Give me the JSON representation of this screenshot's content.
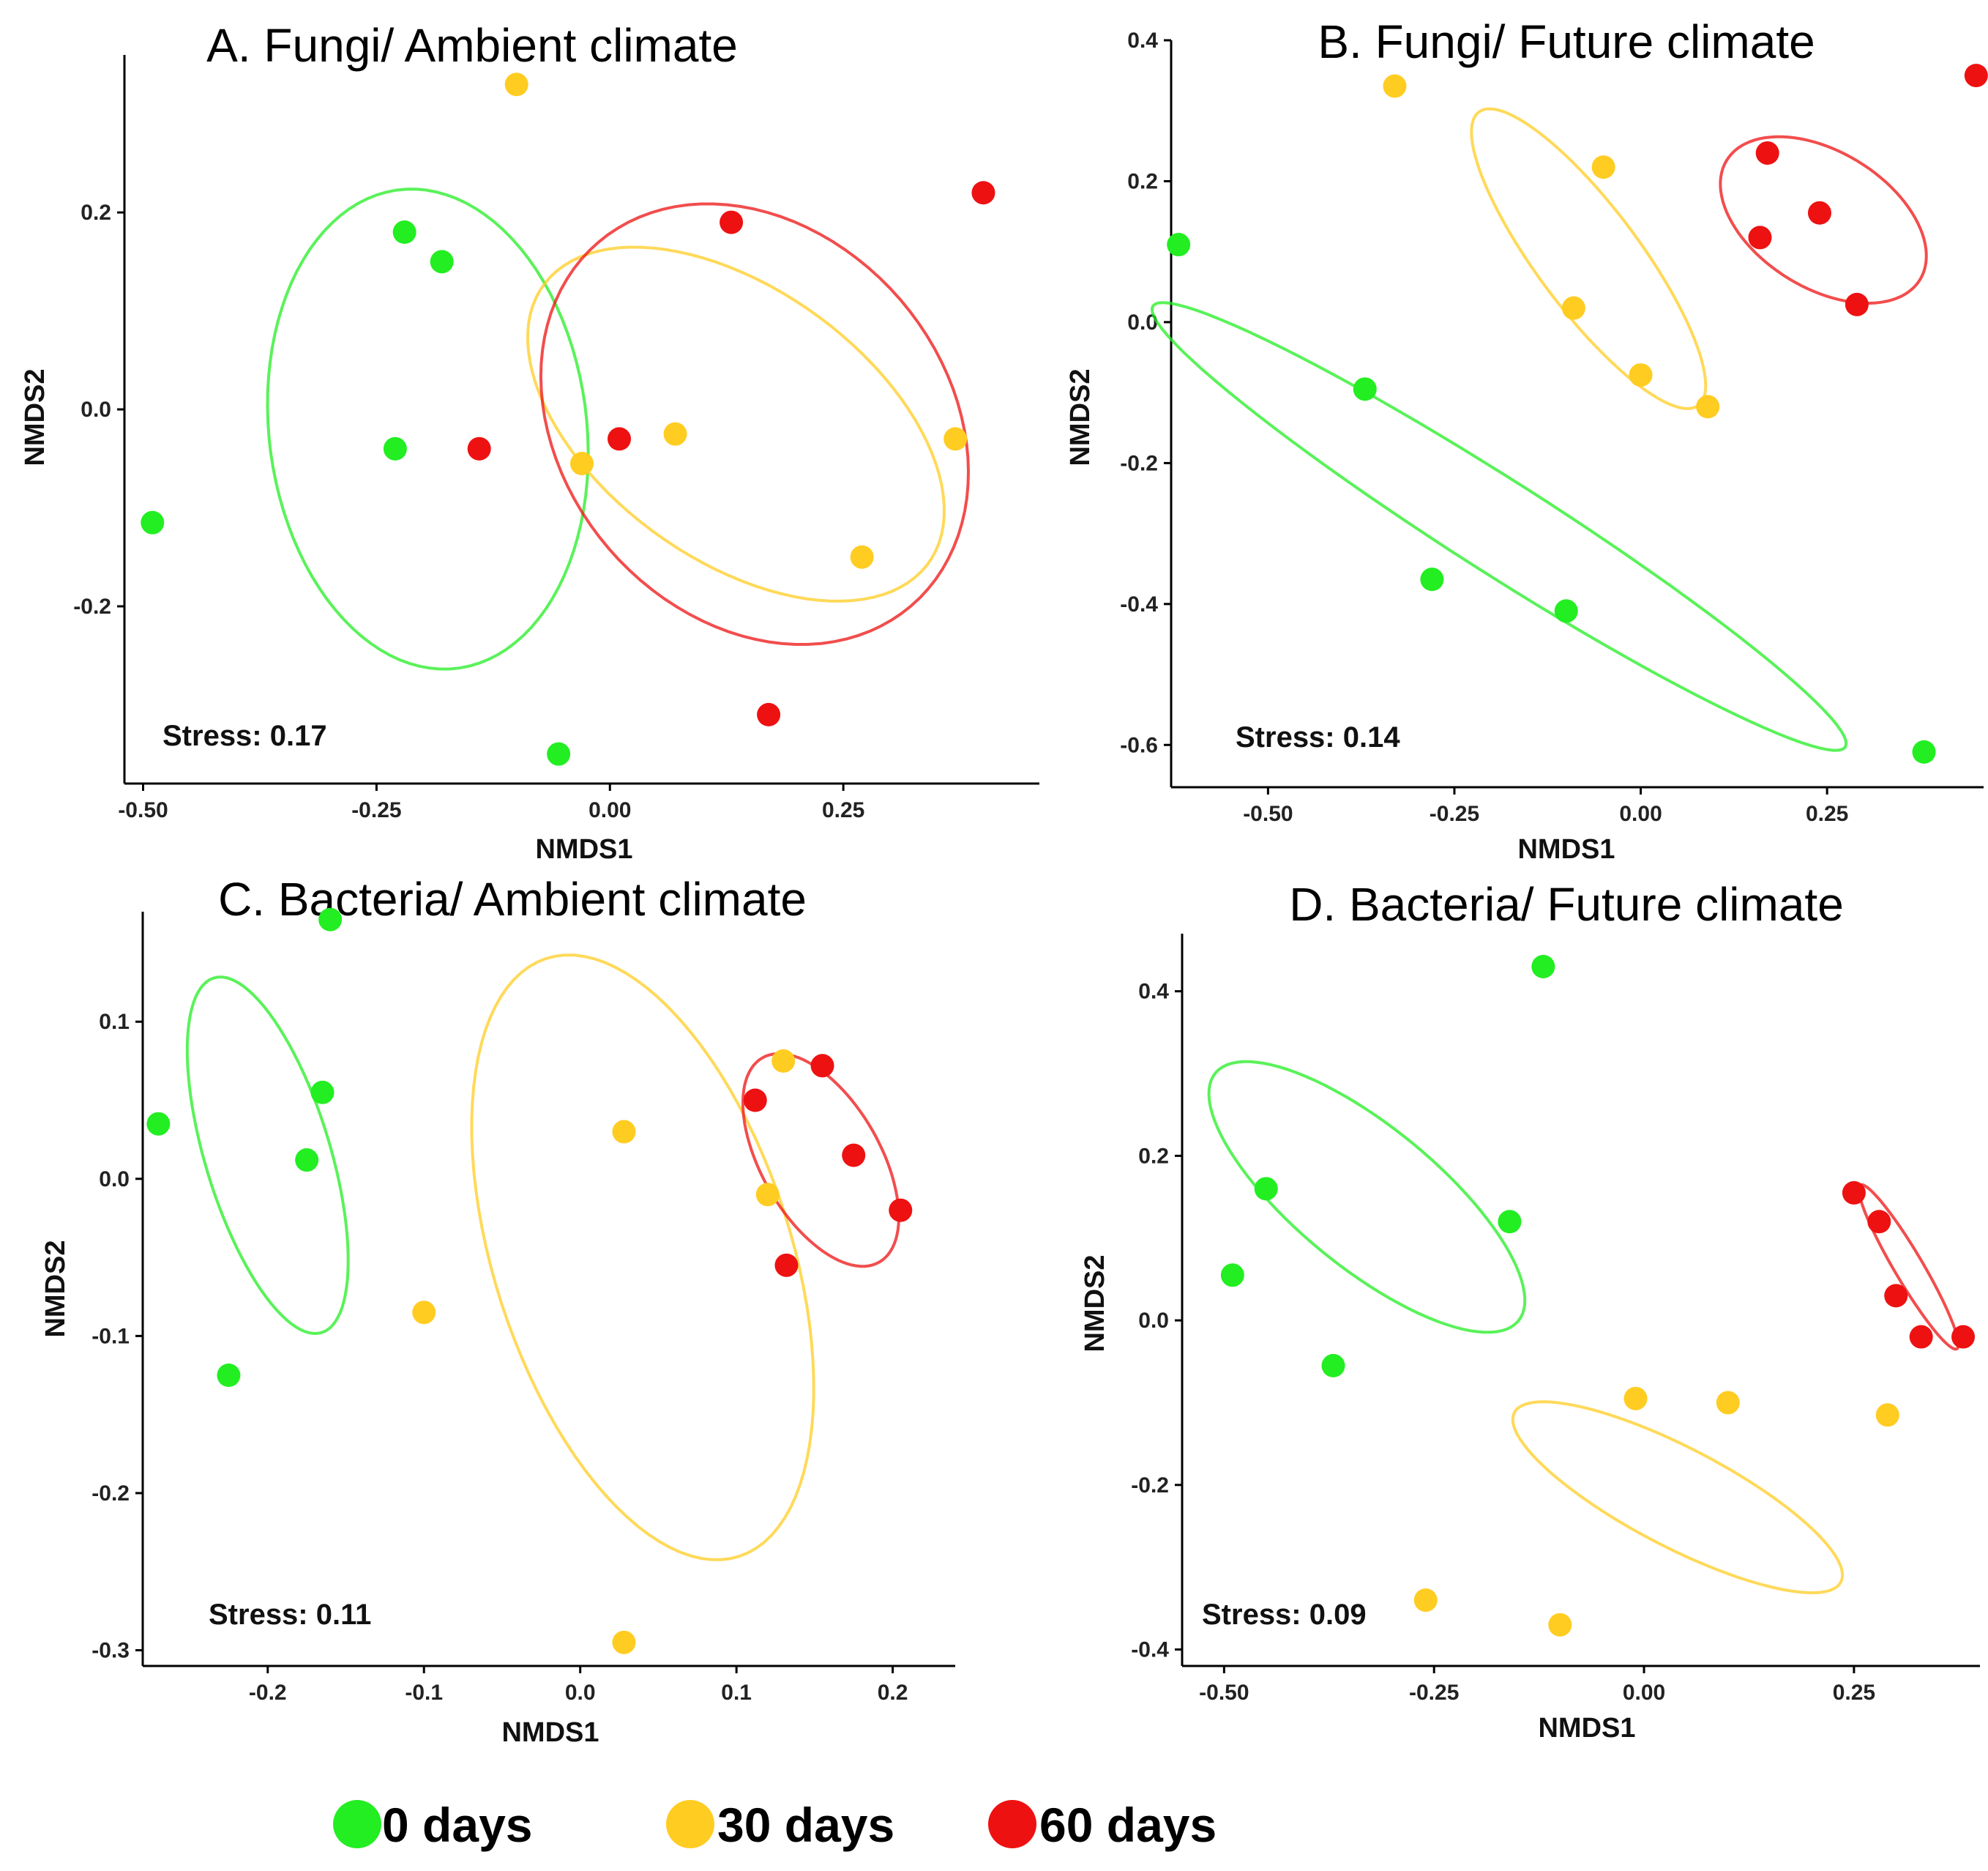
{
  "chart_data": [
    {
      "type": "scatter",
      "title": "A. Fungi/ Ambient climate",
      "xlabel": "NMDS1",
      "ylabel": "NMDS2",
      "stress": "Stress: 0.17",
      "xlim": [
        -0.52,
        0.46
      ],
      "ylim": [
        -0.38,
        0.36
      ],
      "xticks": [
        -0.5,
        -0.25,
        0.0,
        0.25
      ],
      "xtick_labels": [
        "-0.50",
        "-0.25",
        "0.00",
        "0.25"
      ],
      "yticks": [
        -0.2,
        0.0,
        0.2
      ],
      "ytick_labels": [
        "-0.2",
        "0.0",
        "0.2"
      ],
      "series": [
        {
          "name": "0 days",
          "color": "#22ee22",
          "points": [
            [
              -0.49,
              -0.115
            ],
            [
              -0.22,
              0.18
            ],
            [
              -0.18,
              0.15
            ],
            [
              -0.23,
              -0.04
            ],
            [
              -0.055,
              -0.35
            ]
          ],
          "ellipse": {
            "cx": -0.195,
            "cy": -0.02,
            "rx": 0.17,
            "ry": 0.245,
            "angle": 8
          }
        },
        {
          "name": "30 days",
          "color": "#ffcc22",
          "points": [
            [
              -0.1,
              0.33
            ],
            [
              -0.03,
              -0.055
            ],
            [
              0.07,
              -0.025
            ],
            [
              0.27,
              -0.15
            ],
            [
              0.37,
              -0.03
            ]
          ],
          "ellipse": {
            "cx": 0.135,
            "cy": -0.015,
            "rx": 0.25,
            "ry": 0.14,
            "angle": -33
          }
        },
        {
          "name": "60 days",
          "color": "#ee1111",
          "points": [
            [
              0.13,
              0.19
            ],
            [
              0.01,
              -0.03
            ],
            [
              -0.14,
              -0.04
            ],
            [
              0.17,
              -0.31
            ],
            [
              0.4,
              0.22
            ]
          ],
          "ellipse": {
            "cx": 0.155,
            "cy": -0.015,
            "rx": 0.25,
            "ry": 0.2,
            "angle": -42
          }
        }
      ]
    },
    {
      "type": "scatter",
      "title": "B. Fungi/ Future climate",
      "xlabel": "NMDS1",
      "ylabel": "NMDS2",
      "stress": "Stress: 0.14",
      "xlim": [
        -0.63,
        0.46
      ],
      "ylim": [
        -0.66,
        0.4
      ],
      "xticks": [
        -0.5,
        -0.25,
        0.0,
        0.25
      ],
      "xtick_labels": [
        "-0.50",
        "-0.25",
        "0.00",
        "0.25"
      ],
      "yticks": [
        -0.6,
        -0.4,
        -0.2,
        0.0,
        0.2,
        0.4
      ],
      "ytick_labels": [
        "-0.6",
        "-0.4",
        "-0.2",
        "0.0",
        "0.2",
        "0.4"
      ],
      "series": [
        {
          "name": "0 days",
          "color": "#22ee22",
          "points": [
            [
              -0.62,
              0.11
            ],
            [
              -0.37,
              -0.095
            ],
            [
              -0.28,
              -0.365
            ],
            [
              -0.1,
              -0.41
            ],
            [
              0.38,
              -0.61
            ]
          ],
          "ellipse": {
            "cx": -0.19,
            "cy": -0.29,
            "rx": 0.56,
            "ry": 0.065,
            "angle": -34
          }
        },
        {
          "name": "30 days",
          "color": "#ffcc22",
          "points": [
            [
              -0.33,
              0.335
            ],
            [
              -0.05,
              0.22
            ],
            [
              -0.09,
              0.02
            ],
            [
              0.0,
              -0.075
            ],
            [
              0.09,
              -0.12
            ]
          ],
          "ellipse": {
            "cx": -0.07,
            "cy": 0.09,
            "rx": 0.255,
            "ry": 0.07,
            "angle": -55
          }
        },
        {
          "name": "60 days",
          "color": "#ee1111",
          "points": [
            [
              0.17,
              0.24
            ],
            [
              0.24,
              0.155
            ],
            [
              0.16,
              0.12
            ],
            [
              0.29,
              0.025
            ],
            [
              0.45,
              0.35
            ]
          ],
          "ellipse": {
            "cx": 0.245,
            "cy": 0.145,
            "rx": 0.155,
            "ry": 0.095,
            "angle": -35
          }
        }
      ]
    },
    {
      "type": "scatter",
      "title": "C. Bacteria/ Ambient climate",
      "xlabel": "NMDS1",
      "ylabel": "NMDS2",
      "stress": "Stress: 0.11",
      "xlim": [
        -0.28,
        0.24
      ],
      "ylim": [
        -0.31,
        0.17
      ],
      "xticks": [
        -0.2,
        -0.1,
        0.0,
        0.1,
        0.2
      ],
      "xtick_labels": [
        "-0.2",
        "-0.1",
        "0.0",
        "0.1",
        "0.2"
      ],
      "yticks": [
        -0.3,
        -0.2,
        -0.1,
        0.0,
        0.1
      ],
      "ytick_labels": [
        "-0.3",
        "-0.2",
        "-0.1",
        "0.0",
        "0.1"
      ],
      "series": [
        {
          "name": "0 days",
          "color": "#22ee22",
          "points": [
            [
              -0.16,
              0.165
            ],
            [
              -0.165,
              0.055
            ],
            [
              -0.27,
              0.035
            ],
            [
              -0.175,
              0.012
            ],
            [
              -0.225,
              -0.125
            ]
          ],
          "ellipse": {
            "cx": -0.2,
            "cy": 0.015,
            "rx": 0.118,
            "ry": 0.04,
            "angle": -73
          }
        },
        {
          "name": "30 days",
          "color": "#ffcc22",
          "points": [
            [
              -0.1,
              -0.085
            ],
            [
              0.028,
              0.03
            ],
            [
              0.13,
              0.075
            ],
            [
              0.12,
              -0.01
            ],
            [
              0.028,
              -0.295
            ]
          ],
          "ellipse": {
            "cx": 0.04,
            "cy": -0.05,
            "rx": 0.2,
            "ry": 0.095,
            "angle": -72
          }
        },
        {
          "name": "60 days",
          "color": "#ee1111",
          "points": [
            [
              0.112,
              0.05
            ],
            [
              0.155,
              0.072
            ],
            [
              0.175,
              0.015
            ],
            [
              0.205,
              -0.02
            ],
            [
              0.132,
              -0.055
            ]
          ],
          "ellipse": {
            "cx": 0.154,
            "cy": 0.012,
            "rx": 0.075,
            "ry": 0.038,
            "angle": -60
          }
        }
      ]
    },
    {
      "type": "scatter",
      "title": "D. Bacteria/ Future climate",
      "xlabel": "NMDS1",
      "ylabel": "NMDS2",
      "stress": "Stress: 0.09",
      "xlim": [
        -0.55,
        0.4
      ],
      "ylim": [
        -0.42,
        0.47
      ],
      "xticks": [
        -0.5,
        -0.25,
        0.0,
        0.25
      ],
      "xtick_labels": [
        "-0.50",
        "-0.25",
        "0.00",
        "0.25"
      ],
      "yticks": [
        -0.4,
        -0.2,
        0.0,
        0.2,
        0.4
      ],
      "ytick_labels": [
        "-0.4",
        "-0.2",
        "0.0",
        "0.2",
        "0.4"
      ],
      "series": [
        {
          "name": "0 days",
          "color": "#22ee22",
          "points": [
            [
              -0.12,
              0.43
            ],
            [
              -0.45,
              0.16
            ],
            [
              -0.49,
              0.055
            ],
            [
              -0.16,
              0.12
            ],
            [
              -0.37,
              -0.055
            ]
          ],
          "ellipse": {
            "cx": -0.33,
            "cy": 0.15,
            "rx": 0.235,
            "ry": 0.085,
            "angle": -40
          }
        },
        {
          "name": "30 days",
          "color": "#ffcc22",
          "points": [
            [
              -0.01,
              -0.095
            ],
            [
              0.1,
              -0.1
            ],
            [
              0.29,
              -0.115
            ],
            [
              -0.26,
              -0.34
            ],
            [
              -0.1,
              -0.37
            ]
          ],
          "ellipse": {
            "cx": 0.04,
            "cy": -0.215,
            "rx": 0.22,
            "ry": 0.06,
            "angle": -28
          }
        },
        {
          "name": "60 days",
          "color": "#ee1111",
          "points": [
            [
              0.25,
              0.155
            ],
            [
              0.28,
              0.12
            ],
            [
              0.3,
              0.03
            ],
            [
              0.33,
              -0.02
            ],
            [
              0.38,
              -0.02
            ]
          ],
          "ellipse": {
            "cx": 0.315,
            "cy": 0.065,
            "rx": 0.115,
            "ry": 0.017,
            "angle": -60
          }
        }
      ]
    }
  ],
  "legend": {
    "items": [
      {
        "label": "0 days",
        "color": "#22ee22"
      },
      {
        "label": "30 days",
        "color": "#ffcc22"
      },
      {
        "label": "60 days",
        "color": "#ee1111"
      }
    ]
  }
}
